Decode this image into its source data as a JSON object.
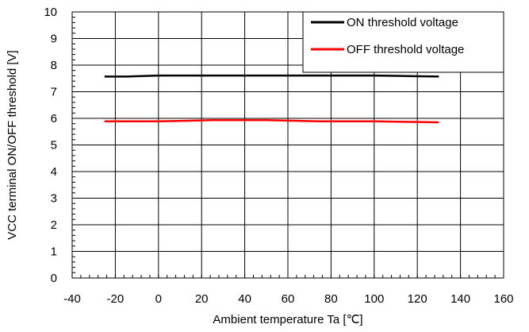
{
  "chart_data": {
    "type": "line",
    "xlabel": "Ambient temperature Ta [℃]",
    "ylabel": "VCC terminal ON/OFF threshold [V]",
    "xlim": [
      -40,
      160
    ],
    "ylim": [
      0,
      10
    ],
    "x_ticks": [
      -40,
      -20,
      0,
      20,
      40,
      60,
      80,
      100,
      120,
      140,
      160
    ],
    "y_ticks": [
      0,
      1,
      2,
      3,
      4,
      5,
      6,
      7,
      8,
      9,
      10
    ],
    "x_minor_step": 4,
    "y_minor_step": 0.2,
    "grid": true,
    "legend_position": "top-right",
    "series": [
      {
        "name": "ON threshold voltage",
        "color": "#000000",
        "x": [
          -25,
          -15,
          0,
          25,
          50,
          75,
          100,
          115,
          130
        ],
        "y": [
          7.57,
          7.57,
          7.61,
          7.61,
          7.61,
          7.61,
          7.61,
          7.59,
          7.57
        ]
      },
      {
        "name": "OFF threshold voltage",
        "color": "#ff0000",
        "x": [
          -25,
          -10,
          0,
          25,
          50,
          75,
          100,
          115,
          130
        ],
        "y": [
          5.89,
          5.89,
          5.89,
          5.93,
          5.93,
          5.89,
          5.89,
          5.87,
          5.85
        ]
      }
    ]
  }
}
